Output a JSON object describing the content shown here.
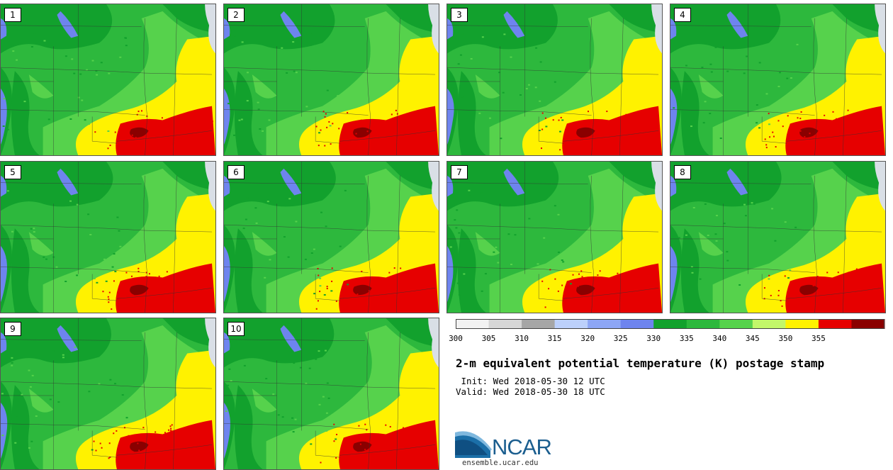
{
  "stamps": [
    {
      "label": "1"
    },
    {
      "label": "2"
    },
    {
      "label": "3"
    },
    {
      "label": "4"
    },
    {
      "label": "5"
    },
    {
      "label": "6"
    },
    {
      "label": "7"
    },
    {
      "label": "8"
    },
    {
      "label": "9"
    },
    {
      "label": "10"
    }
  ],
  "colorbar": {
    "levels": [
      "300",
      "305",
      "310",
      "315",
      "320",
      "325",
      "330",
      "335",
      "340",
      "345",
      "350",
      "355"
    ],
    "colors": [
      "#f2f2f2",
      "#d6d6d6",
      "#a6a6a6",
      "#bcd0fb",
      "#8da6f5",
      "#6e84ee",
      "#12a12d",
      "#2db83d",
      "#56d24c",
      "#c2f76a",
      "#fff200",
      "#e60000",
      "#8a0000"
    ]
  },
  "title": "2-m equivalent potential temperature (K) postage stamp",
  "init_text": " Init: Wed 2018-05-30 12 UTC",
  "valid_text": "Valid: Wed 2018-05-30 18 UTC",
  "logo": {
    "name": "NCAR",
    "url": "ensemble.ucar.edu"
  }
}
